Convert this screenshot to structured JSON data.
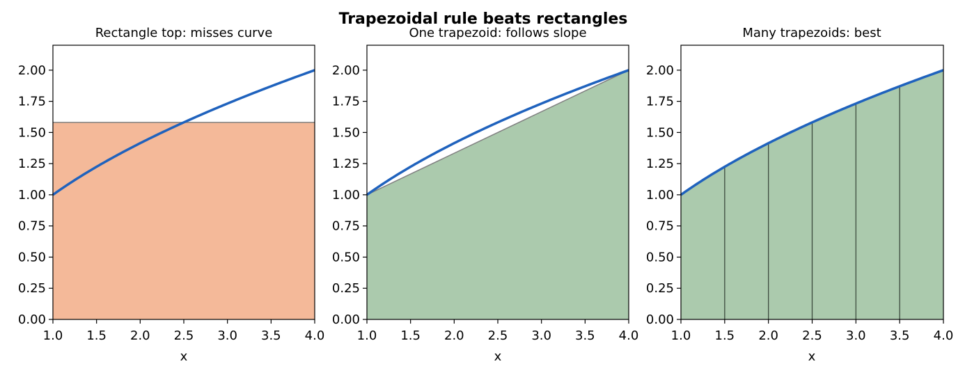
{
  "suptitle": "Trapezoidal rule beats rectangles",
  "colors": {
    "curve": "#1f62bd",
    "rect_fill": "#f4b999",
    "trap_fill": "#abcaad",
    "edge_gray": "#808080",
    "edge_dark": "#3c4a3e",
    "axis": "#000000"
  },
  "chart_data": [
    {
      "type": "area",
      "title": "Rectangle top: misses curve",
      "xlabel": "x",
      "ylabel": "",
      "xlim": [
        1.0,
        4.0
      ],
      "ylim": [
        0.0,
        2.2
      ],
      "xticks": [
        "1.0",
        "1.5",
        "2.0",
        "2.5",
        "3.0",
        "3.5",
        "4.0"
      ],
      "yticks": [
        "0.00",
        "0.25",
        "0.50",
        "0.75",
        "1.00",
        "1.25",
        "1.50",
        "1.75",
        "2.00"
      ],
      "curve": {
        "function": "sqrt(x)",
        "x": [
          1.0,
          4.0
        ]
      },
      "shape": "rectangle",
      "rectangle": {
        "x": [
          1.0,
          4.0
        ],
        "height": 1.581
      },
      "fill_color": "#f4b999"
    },
    {
      "type": "area",
      "title": "One trapezoid: follows slope",
      "xlabel": "x",
      "ylabel": "",
      "xlim": [
        1.0,
        4.0
      ],
      "ylim": [
        0.0,
        2.2
      ],
      "xticks": [
        "1.0",
        "1.5",
        "2.0",
        "2.5",
        "3.0",
        "3.5",
        "4.0"
      ],
      "yticks": [
        "0.00",
        "0.25",
        "0.50",
        "0.75",
        "1.00",
        "1.25",
        "1.50",
        "1.75",
        "2.00"
      ],
      "curve": {
        "function": "sqrt(x)",
        "x": [
          1.0,
          4.0
        ]
      },
      "shape": "trapezoids",
      "nodes": [
        1.0,
        4.0
      ],
      "fill_color": "#abcaad"
    },
    {
      "type": "area",
      "title": "Many trapezoids: best",
      "xlabel": "x",
      "ylabel": "",
      "xlim": [
        1.0,
        4.0
      ],
      "ylim": [
        0.0,
        2.2
      ],
      "xticks": [
        "1.0",
        "1.5",
        "2.0",
        "2.5",
        "3.0",
        "3.5",
        "4.0"
      ],
      "yticks": [
        "0.00",
        "0.25",
        "0.50",
        "0.75",
        "1.00",
        "1.25",
        "1.50",
        "1.75",
        "2.00"
      ],
      "curve": {
        "function": "sqrt(x)",
        "x": [
          1.0,
          4.0
        ]
      },
      "shape": "trapezoids",
      "nodes": [
        1.0,
        1.5,
        2.0,
        2.5,
        3.0,
        3.5,
        4.0
      ],
      "fill_color": "#abcaad"
    }
  ]
}
